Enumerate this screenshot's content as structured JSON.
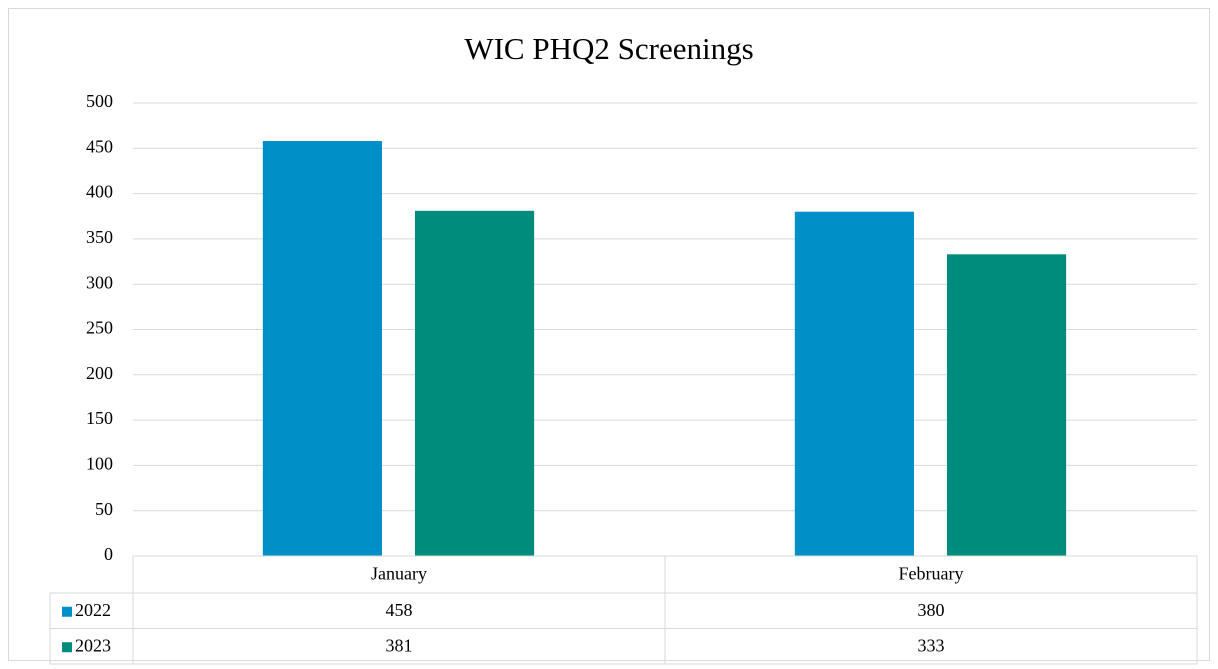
{
  "chart_data": {
    "type": "bar",
    "title": "WIC PHQ2 Screenings",
    "categories": [
      "January",
      "February"
    ],
    "series": [
      {
        "name": "2022",
        "color": "#008fc7",
        "values": [
          458,
          380
        ]
      },
      {
        "name": "2023",
        "color": "#008c7c",
        "values": [
          381,
          333
        ]
      }
    ],
    "ylim": [
      0,
      500
    ],
    "yticks": [
      0,
      50,
      100,
      150,
      200,
      250,
      300,
      350,
      400,
      450,
      500
    ],
    "grid": true,
    "data_table": true
  }
}
